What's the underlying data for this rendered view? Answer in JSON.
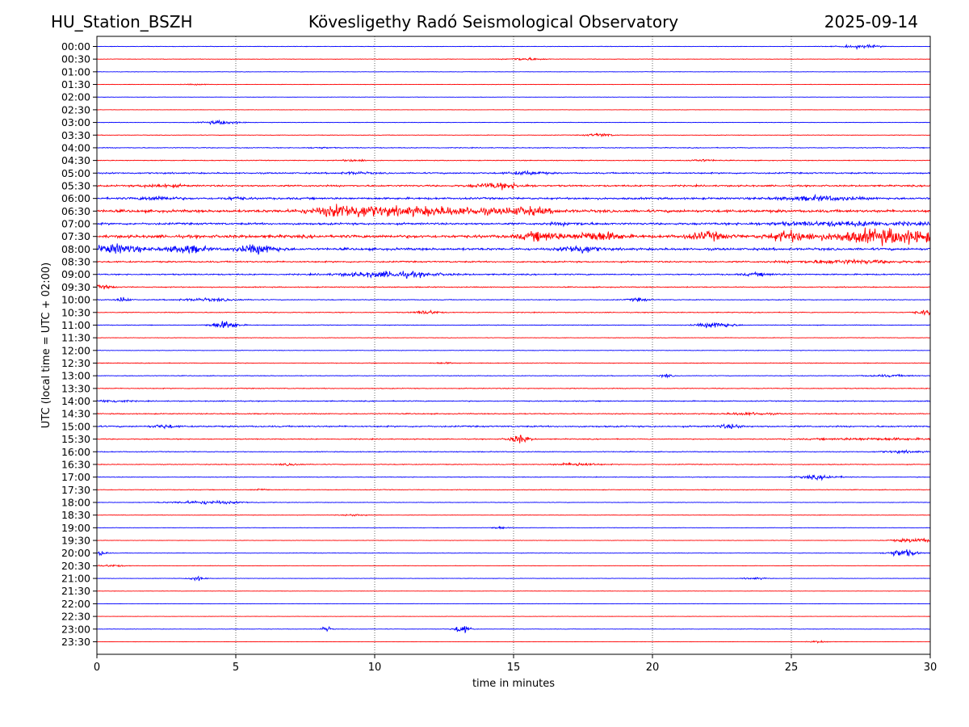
{
  "header": {
    "station": "HU_Station_BSZH",
    "observatory": "Kövesligethy Radó Seismological Observatory",
    "date": "2025-09-14"
  },
  "chart_data": {
    "type": "line",
    "title": "Kövesligethy Radó Seismological Observatory",
    "xlabel": "time in minutes",
    "ylabel": "UTC (local time = UTC + 02:00)",
    "xlim": [
      0,
      30
    ],
    "xticks": [
      0,
      5,
      10,
      15,
      20,
      25,
      30
    ],
    "xtick_labels": [
      "0",
      "5",
      "10",
      "15",
      "20",
      "25",
      "30"
    ],
    "vertical_gridlines_at": [
      5,
      10,
      15,
      20,
      25
    ],
    "grid": "vertical dotted",
    "trace_colors": [
      "#0000ff",
      "#ff0000"
    ],
    "rows": [
      {
        "label": "00:00",
        "color": "#0000ff",
        "bursts": [
          [
            27.5,
            0.5,
            0.5
          ]
        ],
        "noise": 0.08
      },
      {
        "label": "00:30",
        "color": "#ff0000",
        "bursts": [
          [
            15.4,
            0.45,
            0.4
          ]
        ],
        "noise": 0.07
      },
      {
        "label": "01:00",
        "color": "#0000ff",
        "bursts": [],
        "noise": 0.06
      },
      {
        "label": "01:30",
        "color": "#ff0000",
        "bursts": [
          [
            3.6,
            0.35,
            0.15
          ]
        ],
        "noise": 0.06
      },
      {
        "label": "02:00",
        "color": "#0000ff",
        "bursts": [],
        "noise": 0.05
      },
      {
        "label": "02:30",
        "color": "#ff0000",
        "bursts": [],
        "noise": 0.05
      },
      {
        "label": "03:00",
        "color": "#0000ff",
        "bursts": [
          [
            4.5,
            0.45,
            0.6
          ]
        ],
        "noise": 0.07
      },
      {
        "label": "03:30",
        "color": "#ff0000",
        "bursts": [
          [
            18.1,
            0.35,
            0.5
          ]
        ],
        "noise": 0.08
      },
      {
        "label": "04:00",
        "color": "#0000ff",
        "bursts": [
          [
            8.0,
            0.3,
            0.2
          ]
        ],
        "noise": 0.12
      },
      {
        "label": "04:30",
        "color": "#ff0000",
        "bursts": [
          [
            9.3,
            0.35,
            0.3
          ],
          [
            21.8,
            0.35,
            0.3
          ]
        ],
        "noise": 0.12
      },
      {
        "label": "05:00",
        "color": "#0000ff",
        "bursts": [
          [
            9.3,
            0.4,
            0.3
          ],
          [
            15.5,
            0.45,
            0.5
          ]
        ],
        "noise": 0.22
      },
      {
        "label": "05:30",
        "color": "#ff0000",
        "bursts": [
          [
            14.5,
            0.6,
            0.9
          ],
          [
            2.3,
            0.5,
            0.5
          ]
        ],
        "noise": 0.25
      },
      {
        "label": "06:00",
        "color": "#0000ff",
        "bursts": [
          [
            2.2,
            0.45,
            0.6
          ],
          [
            5.0,
            0.3,
            0.4
          ],
          [
            26.0,
            1.0,
            0.6
          ]
        ],
        "noise": 0.3
      },
      {
        "label": "06:30",
        "color": "#ff0000",
        "bursts": [
          [
            9.0,
            0.8,
            1.6
          ],
          [
            12.0,
            2.0,
            1.2
          ],
          [
            15.5,
            0.6,
            0.9
          ]
        ],
        "noise": 0.4
      },
      {
        "label": "07:00",
        "color": "#0000ff",
        "bursts": [
          [
            17.0,
            0.6,
            0.3
          ],
          [
            27.0,
            2.0,
            0.6
          ]
        ],
        "noise": 0.3
      },
      {
        "label": "07:30",
        "color": "#ff0000",
        "bursts": [
          [
            16.0,
            0.5,
            1.3
          ],
          [
            18.0,
            0.6,
            1.4
          ],
          [
            22.0,
            0.5,
            1.1
          ],
          [
            24.9,
            0.5,
            1.4
          ],
          [
            28.5,
            1.5,
            2.2
          ]
        ],
        "noise": 0.45
      },
      {
        "label": "08:00",
        "color": "#0000ff",
        "bursts": [
          [
            0.7,
            0.6,
            1.4
          ],
          [
            3.2,
            0.5,
            1.2
          ],
          [
            5.8,
            0.5,
            1.3
          ],
          [
            17.4,
            0.4,
            1.3
          ]
        ],
        "noise": 0.35
      },
      {
        "label": "08:30",
        "color": "#ff0000",
        "bursts": [
          [
            27.0,
            1.4,
            0.5
          ]
        ],
        "noise": 0.22
      },
      {
        "label": "09:00",
        "color": "#0000ff",
        "bursts": [
          [
            10.6,
            1.2,
            0.9
          ],
          [
            23.8,
            0.4,
            0.4
          ]
        ],
        "noise": 0.2
      },
      {
        "label": "09:30",
        "color": "#ff0000",
        "bursts": [
          [
            0.2,
            0.3,
            0.5
          ]
        ],
        "noise": 0.15
      },
      {
        "label": "10:00",
        "color": "#0000ff",
        "bursts": [
          [
            0.95,
            0.15,
            0.9
          ],
          [
            4.0,
            0.8,
            0.4
          ],
          [
            19.5,
            0.25,
            0.5
          ]
        ],
        "noise": 0.12
      },
      {
        "label": "10:30",
        "color": "#ff0000",
        "bursts": [
          [
            11.9,
            0.3,
            0.6
          ],
          [
            29.8,
            0.25,
            0.7
          ]
        ],
        "noise": 0.12
      },
      {
        "label": "11:00",
        "color": "#0000ff",
        "bursts": [
          [
            4.6,
            0.35,
            1.2
          ],
          [
            22.3,
            0.45,
            0.9
          ]
        ],
        "noise": 0.1
      },
      {
        "label": "11:30",
        "color": "#ff0000",
        "bursts": [],
        "noise": 0.08
      },
      {
        "label": "12:00",
        "color": "#0000ff",
        "bursts": [],
        "noise": 0.08
      },
      {
        "label": "12:30",
        "color": "#ff0000",
        "bursts": [
          [
            12.5,
            0.3,
            0.2
          ]
        ],
        "noise": 0.1
      },
      {
        "label": "13:00",
        "color": "#0000ff",
        "bursts": [
          [
            20.5,
            0.15,
            0.5
          ],
          [
            28.5,
            0.6,
            0.3
          ]
        ],
        "noise": 0.1
      },
      {
        "label": "13:30",
        "color": "#ff0000",
        "bursts": [],
        "noise": 0.12
      },
      {
        "label": "14:00",
        "color": "#0000ff",
        "bursts": [
          [
            0.6,
            0.4,
            0.4
          ]
        ],
        "noise": 0.15
      },
      {
        "label": "14:30",
        "color": "#ff0000",
        "bursts": [
          [
            23.5,
            0.6,
            0.4
          ]
        ],
        "noise": 0.15
      },
      {
        "label": "15:00",
        "color": "#0000ff",
        "bursts": [
          [
            2.4,
            0.3,
            0.5
          ],
          [
            22.8,
            0.3,
            0.6
          ]
        ],
        "noise": 0.22
      },
      {
        "label": "15:30",
        "color": "#ff0000",
        "bursts": [
          [
            15.2,
            0.25,
            1.3
          ],
          [
            28.0,
            1.5,
            0.3
          ]
        ],
        "noise": 0.15
      },
      {
        "label": "16:00",
        "color": "#0000ff",
        "bursts": [
          [
            29.0,
            0.6,
            0.3
          ]
        ],
        "noise": 0.12
      },
      {
        "label": "16:30",
        "color": "#ff0000",
        "bursts": [
          [
            17.3,
            0.5,
            0.5
          ],
          [
            7.0,
            0.3,
            0.3
          ]
        ],
        "noise": 0.12
      },
      {
        "label": "17:00",
        "color": "#0000ff",
        "bursts": [
          [
            26.0,
            0.5,
            0.6
          ]
        ],
        "noise": 0.1
      },
      {
        "label": "17:30",
        "color": "#ff0000",
        "bursts": [
          [
            5.9,
            0.2,
            0.3
          ]
        ],
        "noise": 0.1
      },
      {
        "label": "18:00",
        "color": "#0000ff",
        "bursts": [
          [
            4.0,
            0.9,
            0.5
          ]
        ],
        "noise": 0.08
      },
      {
        "label": "18:30",
        "color": "#ff0000",
        "bursts": [
          [
            9.3,
            0.3,
            0.3
          ]
        ],
        "noise": 0.07
      },
      {
        "label": "19:00",
        "color": "#0000ff",
        "bursts": [
          [
            14.5,
            0.2,
            0.4
          ]
        ],
        "noise": 0.06
      },
      {
        "label": "19:30",
        "color": "#ff0000",
        "bursts": [
          [
            29.5,
            0.6,
            0.6
          ]
        ],
        "noise": 0.06
      },
      {
        "label": "20:00",
        "color": "#0000ff",
        "bursts": [
          [
            0.15,
            0.15,
            0.8
          ],
          [
            29.0,
            0.35,
            1.2
          ]
        ],
        "noise": 0.07
      },
      {
        "label": "20:30",
        "color": "#ff0000",
        "bursts": [
          [
            0.5,
            0.4,
            0.3
          ]
        ],
        "noise": 0.06
      },
      {
        "label": "21:00",
        "color": "#0000ff",
        "bursts": [
          [
            3.6,
            0.2,
            0.7
          ],
          [
            23.7,
            0.3,
            0.3
          ]
        ],
        "noise": 0.06
      },
      {
        "label": "21:30",
        "color": "#ff0000",
        "bursts": [],
        "noise": 0.05
      },
      {
        "label": "22:00",
        "color": "#0000ff",
        "bursts": [],
        "noise": 0.05
      },
      {
        "label": "22:30",
        "color": "#ff0000",
        "bursts": [],
        "noise": 0.05
      },
      {
        "label": "23:00",
        "color": "#0000ff",
        "bursts": [
          [
            8.25,
            0.12,
            0.9
          ],
          [
            13.15,
            0.2,
            1.3
          ]
        ],
        "noise": 0.06
      },
      {
        "label": "23:30",
        "color": "#ff0000",
        "bursts": [
          [
            26.0,
            0.25,
            0.3
          ]
        ],
        "noise": 0.05
      }
    ]
  }
}
